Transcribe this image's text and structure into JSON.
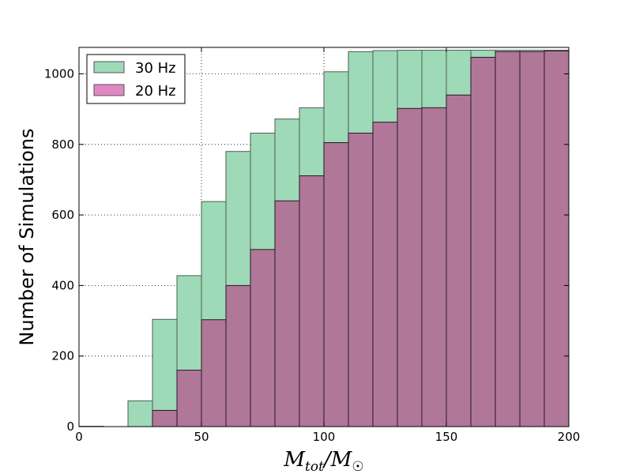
{
  "chart_data": {
    "type": "bar",
    "title": "",
    "xlabel": "M_tot/M_☉",
    "xlabel_parts": {
      "main": "M",
      "main_sub": "tot",
      "slash": "/M",
      "sub_symbol": "☉"
    },
    "ylabel": "Number of Simulations",
    "xlim": [
      0,
      200
    ],
    "ylim": [
      0,
      1075
    ],
    "xticks": [
      0,
      50,
      100,
      150,
      200
    ],
    "yticks": [
      0,
      200,
      400,
      600,
      800,
      1000
    ],
    "grid": true,
    "legend_position": "top-left",
    "bin_edges": [
      0,
      10,
      20,
      30,
      40,
      50,
      60,
      70,
      80,
      90,
      100,
      110,
      120,
      130,
      140,
      150,
      160,
      170,
      180,
      190,
      200
    ],
    "series": [
      {
        "name": "30 Hz",
        "color": "#9ed9b8",
        "values": [
          1,
          0,
          73,
          304,
          428,
          638,
          780,
          832,
          872,
          904,
          1006,
          1063,
          1066,
          1067,
          1067,
          1067,
          1067,
          1067,
          1067,
          1067
        ]
      },
      {
        "name": "20 Hz",
        "color": "#b07799",
        "legend_color": "#e088c2",
        "values": [
          0,
          0,
          0,
          46,
          160,
          303,
          400,
          502,
          640,
          711,
          805,
          832,
          863,
          902,
          904,
          940,
          1047,
          1063,
          1063,
          1065
        ]
      }
    ]
  }
}
